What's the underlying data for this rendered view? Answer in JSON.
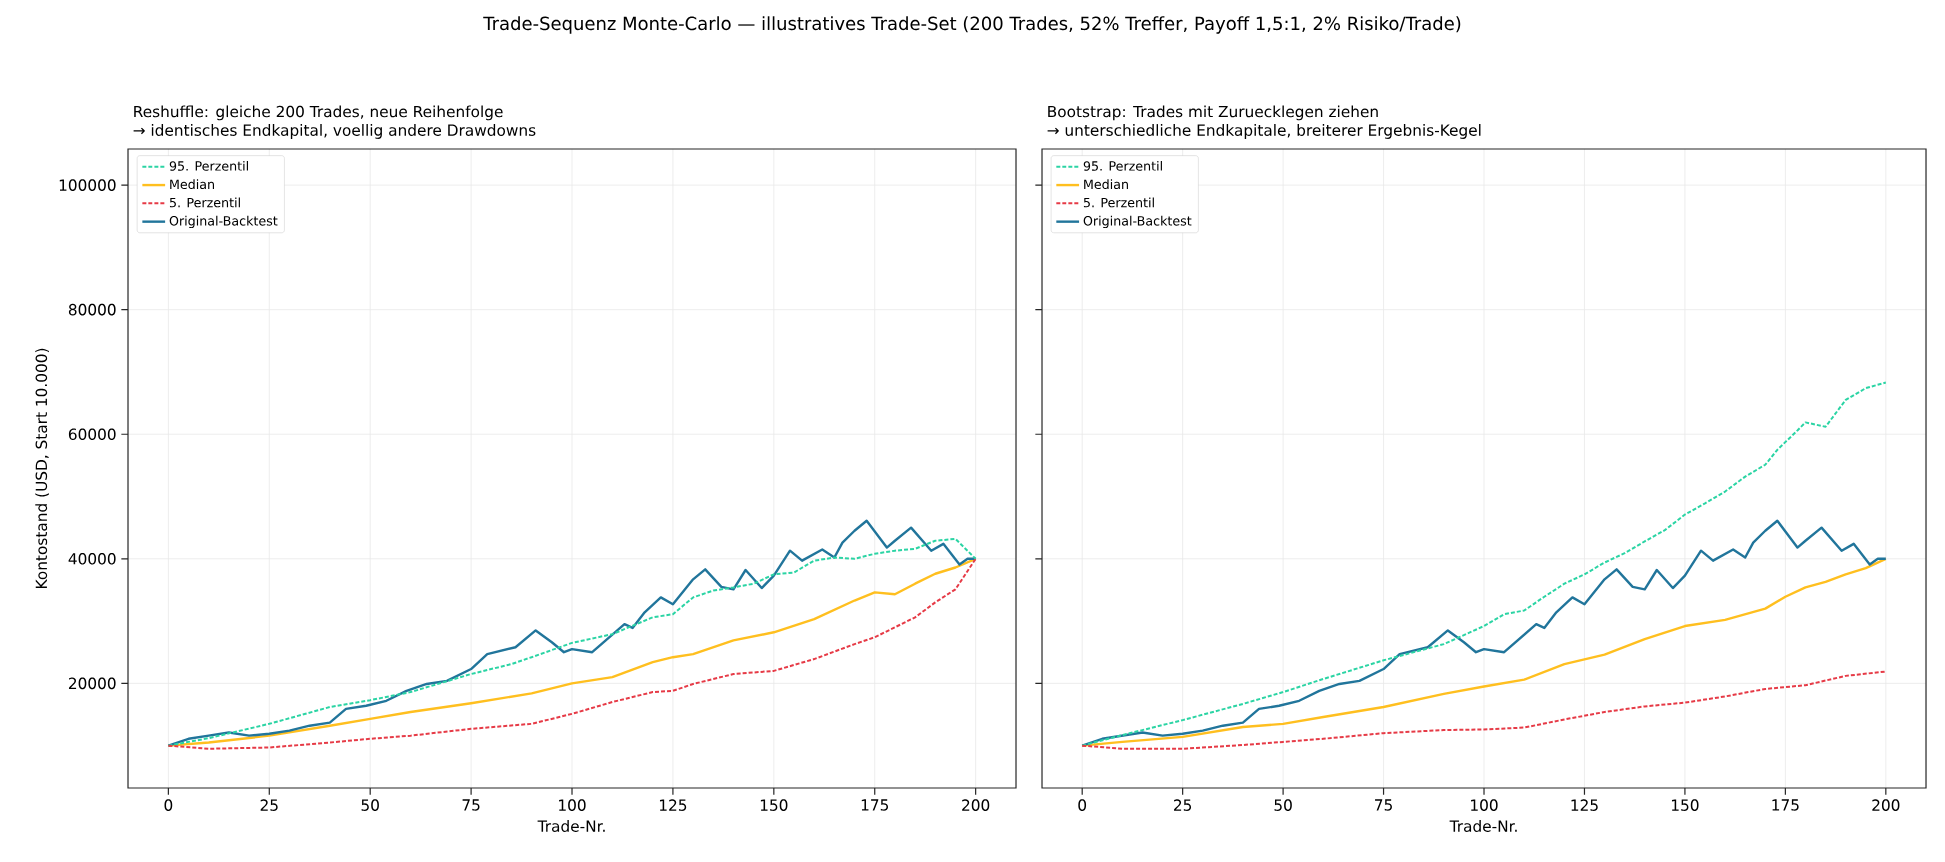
{
  "chart_data": [
    {
      "type": "line",
      "title": "Reshuffle: gleiche 200 Trades, neue Reihenfolge",
      "subtitle": "→ identisches Endkapital, voellig andere Drawdowns",
      "xlabel": "Trade-Nr.",
      "ylabel": "Kontostand (USD, Start 10.000)",
      "annotations": [
        "Trade-Sequenz Monte-Carlo — illustratives Trade-Set (200 Trades, 52% Treffer, Payoff 1,5:1, 2% Risiko/Trade)"
      ],
      "xlim": [
        -10,
        210
      ],
      "ylim": [
        3200,
        105800
      ],
      "xticks": [
        0,
        25,
        50,
        75,
        100,
        125,
        150,
        175,
        200
      ],
      "yticks": [
        20000,
        40000,
        60000,
        80000,
        100000
      ],
      "grid": true,
      "legend": "top left",
      "series": [
        {
          "name": "95. Perzentil",
          "color": "#2bd4a4",
          "line_style": "dashed",
          "x": [
            0,
            10,
            25,
            40,
            50,
            60,
            75,
            85,
            90,
            100,
            110,
            120,
            125,
            130,
            135,
            140,
            145,
            150,
            155,
            160,
            165,
            170,
            175,
            180,
            185,
            190,
            195,
            200
          ],
          "values": [
            10000,
            11200,
            13500,
            16200,
            17300,
            18600,
            21500,
            23100,
            24200,
            26500,
            27900,
            30600,
            31100,
            33800,
            34900,
            35400,
            36000,
            37500,
            37800,
            39700,
            40200,
            40000,
            40800,
            41300,
            41600,
            42900,
            43200,
            40000
          ]
        },
        {
          "name": "Median",
          "color": "#ffbf1f",
          "line_style": "solid",
          "x": [
            0,
            10,
            25,
            40,
            50,
            60,
            75,
            90,
            100,
            110,
            120,
            125,
            130,
            140,
            150,
            160,
            170,
            175,
            180,
            185,
            190,
            195,
            200
          ],
          "values": [
            10000,
            10500,
            11600,
            13200,
            14300,
            15400,
            16800,
            18400,
            20000,
            21000,
            23400,
            24200,
            24700,
            26900,
            28200,
            30300,
            33300,
            34600,
            34300,
            36000,
            37600,
            38600,
            40000
          ]
        },
        {
          "name": "5. Perzentil",
          "color": "#e63a46",
          "line_style": "dashed",
          "x": [
            0,
            10,
            25,
            40,
            50,
            60,
            75,
            90,
            100,
            110,
            120,
            125,
            130,
            140,
            150,
            160,
            170,
            175,
            180,
            185,
            190,
            195,
            200
          ],
          "values": [
            10000,
            9500,
            9700,
            10500,
            11100,
            11600,
            12700,
            13500,
            15100,
            17000,
            18600,
            18800,
            19900,
            21500,
            22000,
            23900,
            26300,
            27400,
            29000,
            30600,
            33000,
            35100,
            40000
          ]
        },
        {
          "name": "Original-Backtest",
          "color": "#21759b",
          "line_style": "solid",
          "x": [
            0,
            5,
            10,
            15,
            20,
            25,
            30,
            35,
            40,
            44,
            49,
            54,
            59,
            64,
            69,
            75,
            79,
            86,
            91,
            95,
            98,
            100,
            105,
            113,
            115,
            118,
            122,
            125,
            130,
            133,
            137,
            140,
            143,
            147,
            150,
            154,
            157,
            162,
            165,
            167,
            170,
            173,
            178,
            180,
            184,
            189,
            192,
            196,
            198,
            200
          ],
          "values": [
            10000,
            11100,
            11600,
            12100,
            11600,
            11900,
            12400,
            13200,
            13700,
            15900,
            16400,
            17200,
            18800,
            19900,
            20400,
            22300,
            24700,
            25800,
            28500,
            26600,
            25000,
            25500,
            25000,
            29500,
            28900,
            31400,
            33800,
            32700,
            36700,
            38300,
            35500,
            35100,
            38200,
            35300,
            37300,
            41300,
            39700,
            41500,
            40200,
            42600,
            44500,
            46100,
            41800,
            42900,
            45000,
            41300,
            42400,
            39100,
            40000,
            40000
          ]
        }
      ]
    },
    {
      "type": "line",
      "title": "Bootstrap: Trades mit Zuruecklegen ziehen",
      "subtitle": "→ unterschiedliche Endkapitale, breiterer Ergebnis-Kegel",
      "xlabel": "Trade-Nr.",
      "xlim": [
        -10,
        210
      ],
      "ylim": [
        3200,
        105800
      ],
      "xticks": [
        0,
        25,
        50,
        75,
        100,
        125,
        150,
        175,
        200
      ],
      "yticks": [
        20000,
        40000,
        60000,
        80000,
        100000
      ],
      "tick_labels": "x",
      "grid": true,
      "legend": "top left",
      "series": [
        {
          "name": "95. Perzentil",
          "color": "#2bd4a4",
          "line_style": "dashed",
          "x": [
            0,
            10,
            25,
            40,
            50,
            60,
            75,
            90,
            100,
            105,
            110,
            115,
            120,
            125,
            130,
            135,
            140,
            145,
            150,
            155,
            160,
            165,
            170,
            173,
            178,
            180,
            185,
            190,
            195,
            200
          ],
          "values": [
            10000,
            11700,
            14100,
            16700,
            18600,
            20700,
            23700,
            26300,
            29200,
            31100,
            31700,
            33900,
            36000,
            37500,
            39400,
            40900,
            42800,
            44600,
            47100,
            48900,
            50800,
            53200,
            55100,
            57500,
            60600,
            61900,
            61200,
            65500,
            67400,
            68300
          ]
        },
        {
          "name": "Median",
          "color": "#ffbf1f",
          "line_style": "solid",
          "x": [
            0,
            10,
            25,
            40,
            50,
            60,
            75,
            90,
            100,
            110,
            120,
            130,
            140,
            150,
            160,
            170,
            175,
            180,
            185,
            190,
            195,
            200
          ],
          "values": [
            10000,
            10600,
            11400,
            13000,
            13500,
            14600,
            16200,
            18300,
            19500,
            20600,
            23100,
            24600,
            27100,
            29200,
            30200,
            32000,
            33900,
            35400,
            36300,
            37500,
            38500,
            40000
          ]
        },
        {
          "name": "5. Perzentil",
          "color": "#e63a46",
          "line_style": "dashed",
          "x": [
            0,
            10,
            25,
            40,
            50,
            60,
            75,
            90,
            100,
            110,
            120,
            130,
            140,
            150,
            160,
            170,
            180,
            190,
            200
          ],
          "values": [
            10000,
            9500,
            9500,
            10100,
            10600,
            11100,
            12000,
            12500,
            12600,
            12900,
            14200,
            15400,
            16300,
            16900,
            17900,
            19100,
            19700,
            21200,
            21900
          ]
        },
        {
          "name": "Original-Backtest",
          "color": "#21759b",
          "line_style": "solid",
          "x": [
            0,
            5,
            10,
            15,
            20,
            25,
            30,
            35,
            40,
            44,
            49,
            54,
            59,
            64,
            69,
            75,
            79,
            86,
            91,
            95,
            98,
            100,
            105,
            113,
            115,
            118,
            122,
            125,
            130,
            133,
            137,
            140,
            143,
            147,
            150,
            154,
            157,
            162,
            165,
            167,
            170,
            173,
            178,
            180,
            184,
            189,
            192,
            196,
            198,
            200
          ],
          "values": [
            10000,
            11100,
            11600,
            12100,
            11600,
            11900,
            12400,
            13200,
            13700,
            15900,
            16400,
            17200,
            18800,
            19900,
            20400,
            22300,
            24700,
            25800,
            28500,
            26600,
            25000,
            25500,
            25000,
            29500,
            28900,
            31400,
            33800,
            32700,
            36700,
            38300,
            35500,
            35100,
            38200,
            35300,
            37300,
            41300,
            39700,
            41500,
            40200,
            42600,
            44500,
            46100,
            41800,
            42900,
            45000,
            41300,
            42400,
            39100,
            40000,
            40000
          ]
        }
      ]
    }
  ]
}
